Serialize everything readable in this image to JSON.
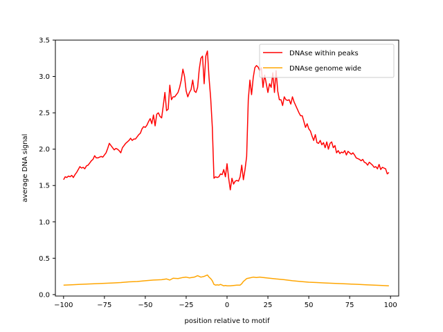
{
  "chart_data": {
    "type": "line",
    "title": "",
    "xlabel": "position relative to motif",
    "ylabel": "average DNA signal",
    "xlim": [
      -105,
      105
    ],
    "ylim": [
      -0.02,
      3.5
    ],
    "xticks": [
      -100,
      -75,
      -50,
      -25,
      0,
      25,
      50,
      75,
      100
    ],
    "xtick_labels": [
      "−100",
      "−75",
      "−50",
      "−25",
      "0",
      "25",
      "50",
      "75",
      "100"
    ],
    "yticks": [
      0.0,
      0.5,
      1.0,
      1.5,
      2.0,
      2.5,
      3.0,
      3.5
    ],
    "ytick_labels": [
      "0.0",
      "0.5",
      "1.0",
      "1.5",
      "2.0",
      "2.5",
      "3.0",
      "3.5"
    ],
    "grid": false,
    "legend_position": "top-right",
    "series": [
      {
        "name": "DNAse within peaks",
        "color": "#ff0000",
        "points": [
          [
            -100,
            1.58
          ],
          [
            -99,
            1.62
          ],
          [
            -98,
            1.61
          ],
          [
            -97,
            1.63
          ],
          [
            -96,
            1.62
          ],
          [
            -95,
            1.64
          ],
          [
            -94,
            1.61
          ],
          [
            -93,
            1.65
          ],
          [
            -92,
            1.68
          ],
          [
            -91,
            1.72
          ],
          [
            -90,
            1.76
          ],
          [
            -89,
            1.74
          ],
          [
            -88,
            1.75
          ],
          [
            -87,
            1.73
          ],
          [
            -86,
            1.77
          ],
          [
            -85,
            1.78
          ],
          [
            -84,
            1.81
          ],
          [
            -83,
            1.84
          ],
          [
            -82,
            1.86
          ],
          [
            -81,
            1.91
          ],
          [
            -80,
            1.88
          ],
          [
            -79,
            1.88
          ],
          [
            -78,
            1.89
          ],
          [
            -77,
            1.9
          ],
          [
            -76,
            1.89
          ],
          [
            -75,
            1.92
          ],
          [
            -74,
            1.95
          ],
          [
            -73,
            2.01
          ],
          [
            -72,
            2.08
          ],
          [
            -71,
            2.05
          ],
          [
            -70,
            2.02
          ],
          [
            -69,
            1.99
          ],
          [
            -68,
            2.01
          ],
          [
            -67,
            2.0
          ],
          [
            -66,
            1.98
          ],
          [
            -65,
            1.95
          ],
          [
            -64,
            2.02
          ],
          [
            -63,
            2.05
          ],
          [
            -62,
            2.08
          ],
          [
            -61,
            2.1
          ],
          [
            -60,
            2.12
          ],
          [
            -59,
            2.15
          ],
          [
            -58,
            2.12
          ],
          [
            -57,
            2.14
          ],
          [
            -56,
            2.14
          ],
          [
            -55,
            2.17
          ],
          [
            -54,
            2.2
          ],
          [
            -53,
            2.22
          ],
          [
            -52,
            2.28
          ],
          [
            -51,
            2.31
          ],
          [
            -50,
            2.3
          ],
          [
            -49,
            2.33
          ],
          [
            -48,
            2.38
          ],
          [
            -47,
            2.42
          ],
          [
            -46,
            2.35
          ],
          [
            -45,
            2.47
          ],
          [
            -44,
            2.32
          ],
          [
            -43,
            2.48
          ],
          [
            -42,
            2.5
          ],
          [
            -41,
            2.45
          ],
          [
            -40,
            2.43
          ],
          [
            -39,
            2.6
          ],
          [
            -38,
            2.78
          ],
          [
            -37,
            2.53
          ],
          [
            -36,
            2.55
          ],
          [
            -35,
            2.88
          ],
          [
            -34,
            2.68
          ],
          [
            -33,
            2.72
          ],
          [
            -32,
            2.72
          ],
          [
            -31,
            2.75
          ],
          [
            -30,
            2.78
          ],
          [
            -29,
            2.85
          ],
          [
            -28,
            2.95
          ],
          [
            -27,
            3.1
          ],
          [
            -26,
            3.0
          ],
          [
            -25,
            2.8
          ],
          [
            -24,
            2.72
          ],
          [
            -23,
            2.78
          ],
          [
            -22,
            2.82
          ],
          [
            -21,
            2.95
          ],
          [
            -20,
            2.8
          ],
          [
            -19,
            2.78
          ],
          [
            -18,
            2.85
          ],
          [
            -17,
            3.1
          ],
          [
            -16,
            3.25
          ],
          [
            -15,
            3.28
          ],
          [
            -14,
            2.9
          ],
          [
            -13,
            3.28
          ],
          [
            -12,
            3.35
          ],
          [
            -11,
            2.98
          ],
          [
            -10,
            2.7
          ],
          [
            -9,
            2.3
          ],
          [
            -8,
            1.6
          ],
          [
            -7,
            1.62
          ],
          [
            -6,
            1.61
          ],
          [
            -5,
            1.62
          ],
          [
            -4,
            1.66
          ],
          [
            -3,
            1.65
          ],
          [
            -2,
            1.72
          ],
          [
            -1,
            1.62
          ],
          [
            0,
            1.8
          ],
          [
            1,
            1.6
          ],
          [
            2,
            1.44
          ],
          [
            3,
            1.6
          ],
          [
            4,
            1.52
          ],
          [
            5,
            1.56
          ],
          [
            6,
            1.57
          ],
          [
            7,
            1.56
          ],
          [
            8,
            1.62
          ],
          [
            9,
            1.78
          ],
          [
            10,
            1.58
          ],
          [
            11,
            1.72
          ],
          [
            12,
            1.9
          ],
          [
            13,
            2.68
          ],
          [
            14,
            2.95
          ],
          [
            15,
            2.75
          ],
          [
            16,
            2.98
          ],
          [
            17,
            3.12
          ],
          [
            18,
            3.15
          ],
          [
            19,
            3.13
          ],
          [
            20,
            3.08
          ],
          [
            21,
            3.12
          ],
          [
            22,
            2.85
          ],
          [
            23,
            3.02
          ],
          [
            24,
            2.9
          ],
          [
            25,
            2.78
          ],
          [
            26,
            2.9
          ],
          [
            27,
            2.85
          ],
          [
            28,
            3.05
          ],
          [
            29,
            2.78
          ],
          [
            30,
            3.08
          ],
          [
            31,
            2.8
          ],
          [
            32,
            2.68
          ],
          [
            33,
            2.68
          ],
          [
            34,
            2.6
          ],
          [
            35,
            2.72
          ],
          [
            36,
            2.68
          ],
          [
            37,
            2.67
          ],
          [
            38,
            2.68
          ],
          [
            39,
            2.62
          ],
          [
            40,
            2.72
          ],
          [
            41,
            2.65
          ],
          [
            42,
            2.6
          ],
          [
            43,
            2.55
          ],
          [
            44,
            2.5
          ],
          [
            45,
            2.46
          ],
          [
            46,
            2.46
          ],
          [
            47,
            2.38
          ],
          [
            48,
            2.3
          ],
          [
            49,
            2.35
          ],
          [
            50,
            2.28
          ],
          [
            51,
            2.25
          ],
          [
            52,
            2.18
          ],
          [
            53,
            2.12
          ],
          [
            54,
            2.2
          ],
          [
            55,
            2.09
          ],
          [
            56,
            2.08
          ],
          [
            57,
            2.12
          ],
          [
            58,
            2.06
          ],
          [
            59,
            2.09
          ],
          [
            60,
            2.02
          ],
          [
            61,
            2.1
          ],
          [
            62,
            2.0
          ],
          [
            63,
            2.08
          ],
          [
            64,
            2.1
          ],
          [
            65,
            2.02
          ],
          [
            66,
            2.05
          ],
          [
            67,
            1.95
          ],
          [
            68,
            1.98
          ],
          [
            69,
            1.94
          ],
          [
            70,
            1.96
          ],
          [
            71,
            1.95
          ],
          [
            72,
            1.98
          ],
          [
            73,
            1.92
          ],
          [
            74,
            1.97
          ],
          [
            75,
            1.95
          ],
          [
            76,
            1.93
          ],
          [
            77,
            1.95
          ],
          [
            78,
            1.92
          ],
          [
            79,
            1.88
          ],
          [
            80,
            1.87
          ],
          [
            81,
            1.86
          ],
          [
            82,
            1.84
          ],
          [
            83,
            1.86
          ],
          [
            84,
            1.82
          ],
          [
            85,
            1.81
          ],
          [
            86,
            1.78
          ],
          [
            87,
            1.82
          ],
          [
            88,
            1.8
          ],
          [
            89,
            1.78
          ],
          [
            90,
            1.75
          ],
          [
            91,
            1.76
          ],
          [
            92,
            1.73
          ],
          [
            93,
            1.79
          ],
          [
            94,
            1.72
          ],
          [
            95,
            1.75
          ],
          [
            96,
            1.74
          ],
          [
            97,
            1.73
          ],
          [
            98,
            1.66
          ],
          [
            99,
            1.68
          ]
        ]
      },
      {
        "name": "DNAse genome wide",
        "color": "#ffa500",
        "points": [
          [
            -100,
            0.13
          ],
          [
            -95,
            0.135
          ],
          [
            -90,
            0.14
          ],
          [
            -85,
            0.145
          ],
          [
            -80,
            0.15
          ],
          [
            -75,
            0.155
          ],
          [
            -70,
            0.16
          ],
          [
            -65,
            0.165
          ],
          [
            -60,
            0.175
          ],
          [
            -55,
            0.18
          ],
          [
            -50,
            0.19
          ],
          [
            -45,
            0.2
          ],
          [
            -40,
            0.205
          ],
          [
            -37,
            0.215
          ],
          [
            -35,
            0.2
          ],
          [
            -33,
            0.225
          ],
          [
            -30,
            0.22
          ],
          [
            -27,
            0.235
          ],
          [
            -25,
            0.24
          ],
          [
            -23,
            0.23
          ],
          [
            -20,
            0.24
          ],
          [
            -18,
            0.26
          ],
          [
            -16,
            0.24
          ],
          [
            -14,
            0.25
          ],
          [
            -12,
            0.27
          ],
          [
            -11,
            0.24
          ],
          [
            -10,
            0.22
          ],
          [
            -9,
            0.19
          ],
          [
            -8,
            0.14
          ],
          [
            -7,
            0.13
          ],
          [
            -6,
            0.135
          ],
          [
            -5,
            0.13
          ],
          [
            -4,
            0.14
          ],
          [
            -3,
            0.13
          ],
          [
            -2,
            0.12
          ],
          [
            -1,
            0.125
          ],
          [
            0,
            0.12
          ],
          [
            2,
            0.12
          ],
          [
            4,
            0.125
          ],
          [
            6,
            0.13
          ],
          [
            8,
            0.13
          ],
          [
            9,
            0.15
          ],
          [
            10,
            0.18
          ],
          [
            11,
            0.2
          ],
          [
            12,
            0.22
          ],
          [
            14,
            0.23
          ],
          [
            16,
            0.24
          ],
          [
            18,
            0.235
          ],
          [
            20,
            0.24
          ],
          [
            22,
            0.235
          ],
          [
            24,
            0.23
          ],
          [
            26,
            0.225
          ],
          [
            28,
            0.22
          ],
          [
            30,
            0.215
          ],
          [
            35,
            0.205
          ],
          [
            40,
            0.19
          ],
          [
            45,
            0.18
          ],
          [
            50,
            0.17
          ],
          [
            55,
            0.165
          ],
          [
            60,
            0.16
          ],
          [
            65,
            0.155
          ],
          [
            70,
            0.15
          ],
          [
            75,
            0.145
          ],
          [
            80,
            0.14
          ],
          [
            85,
            0.135
          ],
          [
            90,
            0.13
          ],
          [
            95,
            0.125
          ],
          [
            99,
            0.12
          ]
        ]
      }
    ]
  }
}
